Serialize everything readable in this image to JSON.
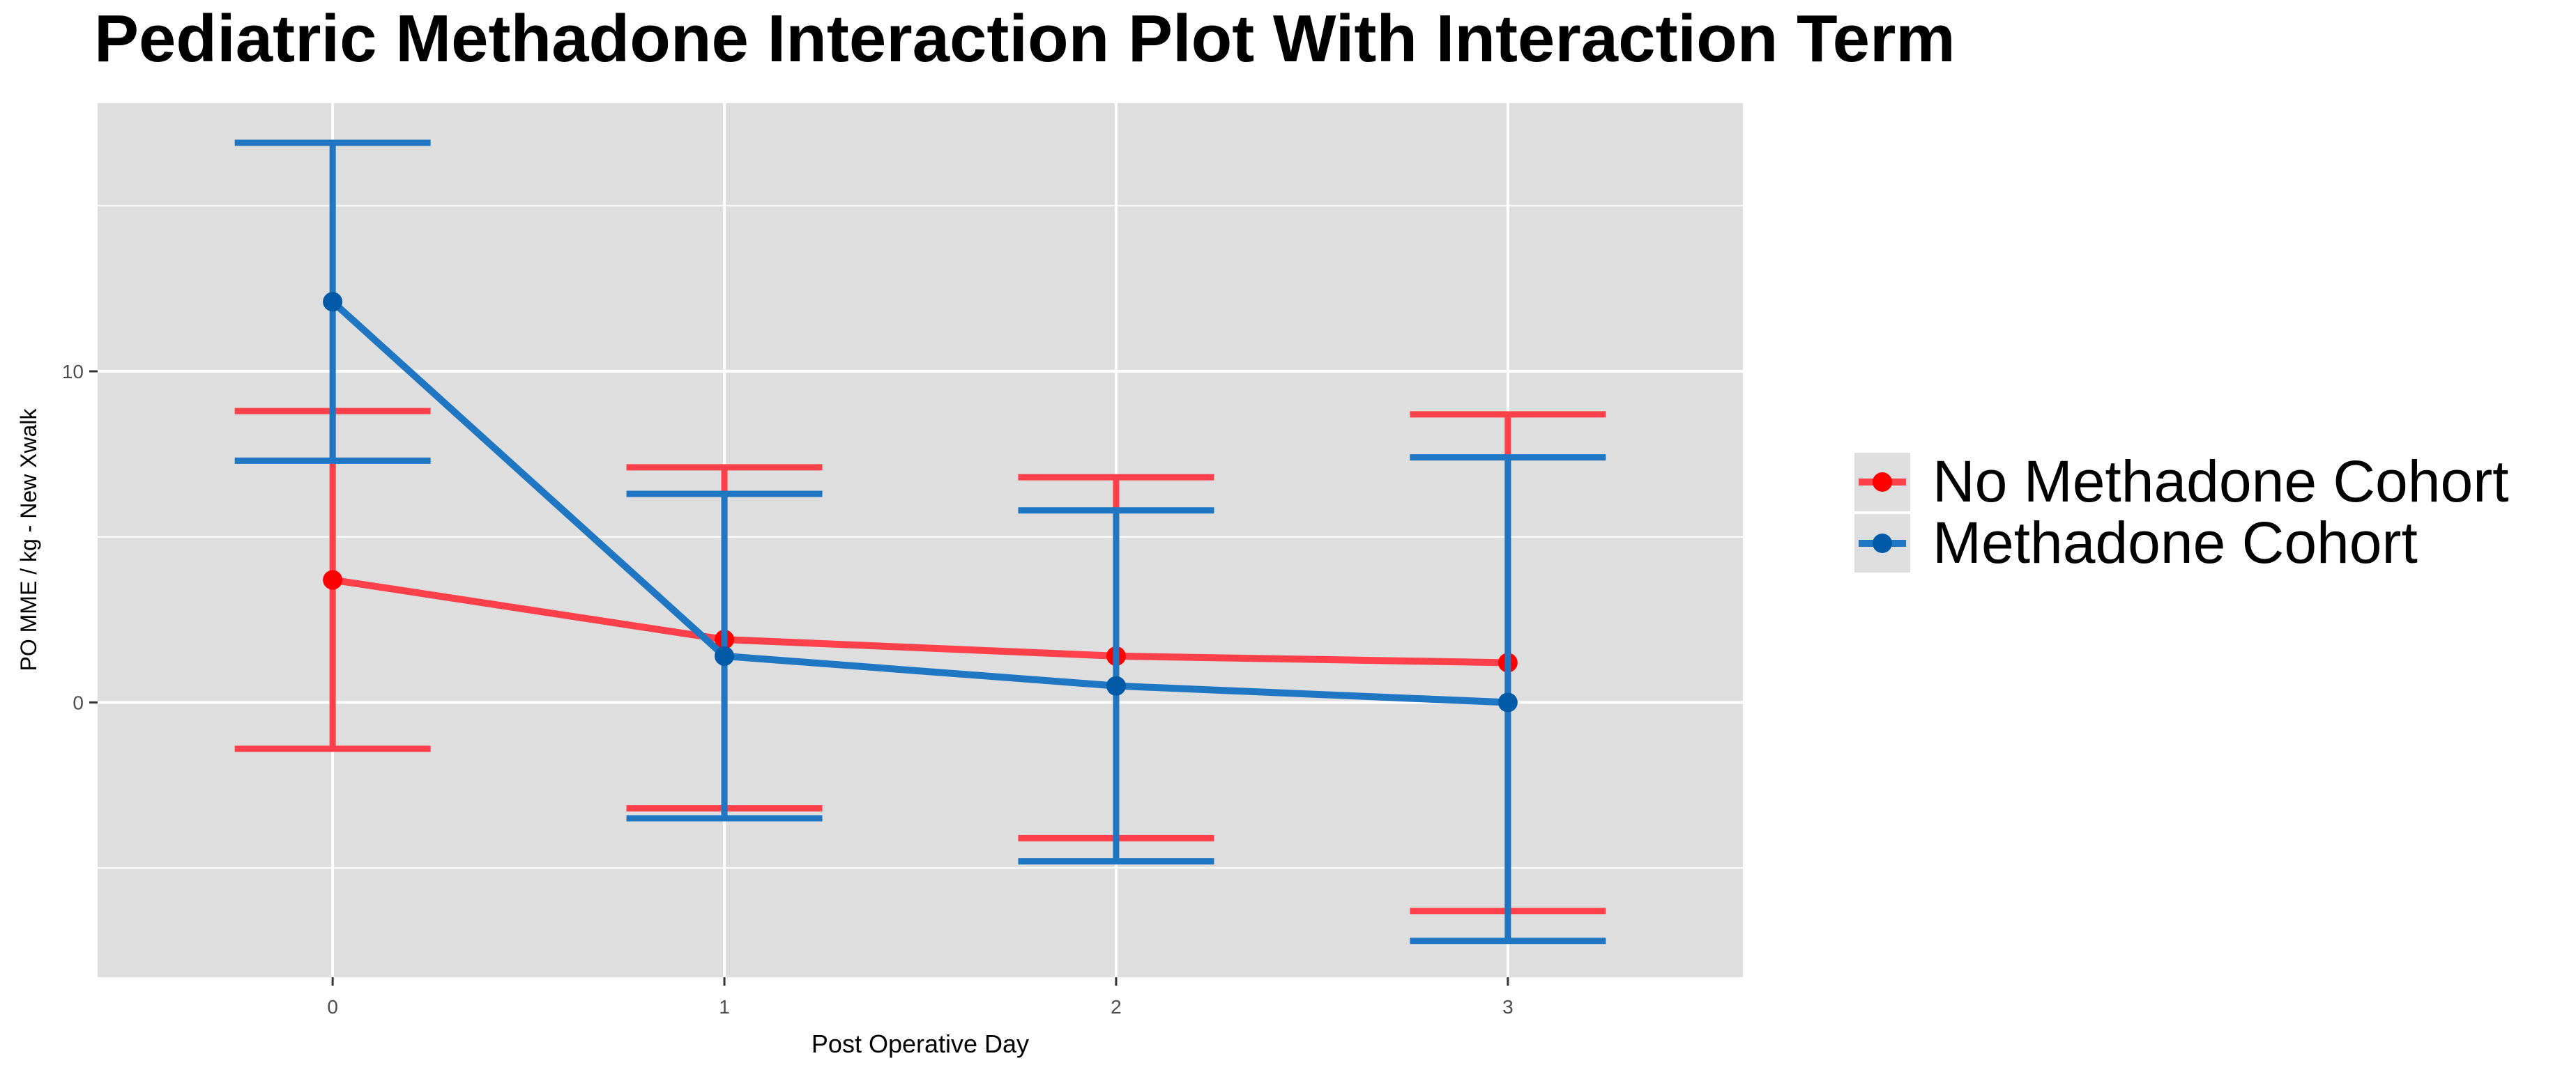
{
  "chart_data": {
    "type": "line",
    "title": "Pediatric Methadone Interaction Plot With Interaction Term",
    "xlabel": "Post Operative Day",
    "ylabel": "PO MME / kg - New Xwalk",
    "x": [
      0,
      1,
      2,
      3
    ],
    "x_tick_labels": [
      "0",
      "1",
      "2",
      "3"
    ],
    "y_tick_labels": [
      "0",
      "10"
    ],
    "y_ticks": [
      0,
      10
    ],
    "xlim": [
      -0.6,
      3.6
    ],
    "ylim": [
      -8.3,
      18.1
    ],
    "grid": true,
    "legend_position": "right",
    "series": [
      {
        "name": "No Methadone Cohort",
        "color": "#fd4049",
        "point_color": "#ff0000",
        "values": [
          3.7,
          1.9,
          1.4,
          1.2
        ],
        "error_low": [
          -1.4,
          -3.2,
          -4.1,
          -6.3
        ],
        "error_high": [
          8.8,
          7.1,
          6.8,
          8.7
        ]
      },
      {
        "name": "Methadone Cohort",
        "color": "#1f77c4",
        "point_color": "#005aa8",
        "values": [
          12.1,
          1.4,
          0.5,
          0.0
        ],
        "error_low": [
          7.3,
          -3.5,
          -4.8,
          -7.2
        ],
        "error_high": [
          16.9,
          6.3,
          5.8,
          7.4
        ]
      }
    ]
  }
}
